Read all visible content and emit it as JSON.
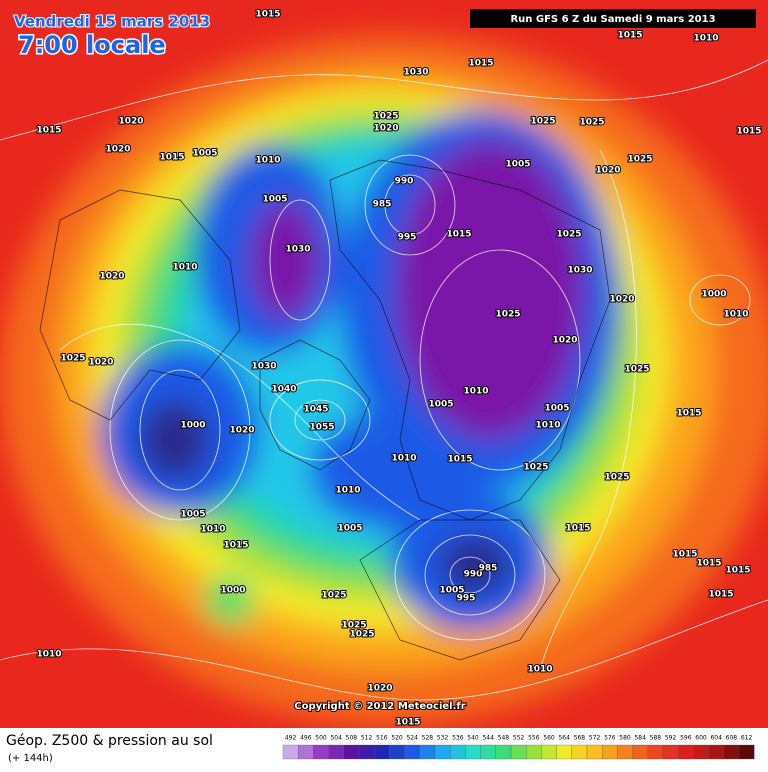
{
  "header": {
    "date": "Vendredi 15 mars 2013",
    "time": "7:00 locale",
    "run": "Run GFS 6 Z du Samedi 9 mars 2013"
  },
  "copyright": "Copyright © 2012 Meteociel.fr",
  "footer": {
    "title": "Géop. Z500 & pression au sol",
    "lead": "(+ 144h)"
  },
  "scale": [
    492,
    496,
    500,
    504,
    508,
    512,
    516,
    520,
    524,
    528,
    532,
    536,
    540,
    544,
    548,
    552,
    556,
    560,
    564,
    568,
    572,
    576,
    580,
    584,
    588,
    592,
    596,
    600,
    604,
    608,
    612
  ],
  "pressure_labels": [
    1015,
    1015,
    1010,
    1030,
    1015,
    1015,
    1020,
    1025,
    1020,
    1025,
    1025,
    1015,
    1020,
    1015,
    1005,
    1010,
    1005,
    1025,
    1020,
    990,
    985,
    1005,
    995,
    1015,
    1025,
    1030,
    1010,
    1020,
    1030,
    1020,
    1000,
    1010,
    1025,
    1020,
    1025,
    1020,
    1030,
    1040,
    1010,
    1005,
    1005,
    1025,
    1015,
    1000,
    1020,
    1045,
    1055,
    1010,
    1010,
    1015,
    1025,
    1025,
    1010,
    1005,
    1005,
    1010,
    1015,
    1015,
    990,
    985,
    1005,
    995,
    1000,
    1025,
    1015,
    1015,
    1015,
    1015,
    1025,
    1025,
    1010,
    1010,
    1020,
    1015
  ]
}
